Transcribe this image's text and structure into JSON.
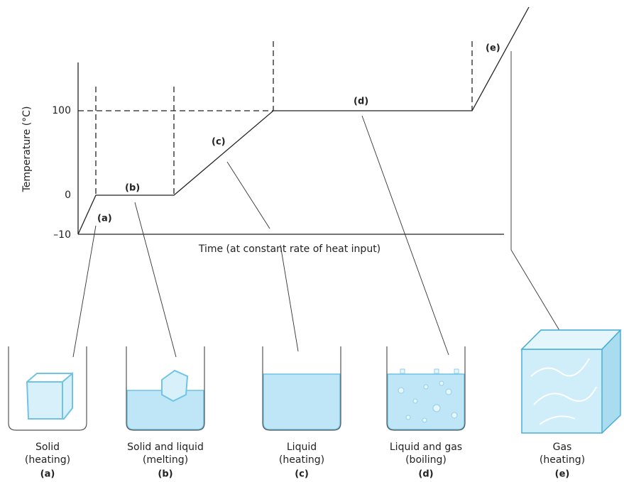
{
  "graph": {
    "y_axis_label": "Temperature (°C)",
    "y_ticks": [
      "100",
      "0",
      "–10"
    ],
    "x_axis_label": "Time (at constant rate of heat input)",
    "segment_labels": [
      "(a)",
      "(b)",
      "(c)",
      "(d)",
      "(e)"
    ]
  },
  "panels": [
    {
      "caption": [
        "Solid",
        "(heating)"
      ],
      "letter": "(a)"
    },
    {
      "caption": [
        "Solid and liquid",
        "(melting)"
      ],
      "letter": "(b)"
    },
    {
      "caption": [
        "Liquid",
        "(heating)"
      ],
      "letter": "(c)"
    },
    {
      "caption": [
        "Liquid and gas",
        "(boiling)"
      ],
      "letter": "(d)"
    },
    {
      "caption": [
        "Gas",
        "(heating)"
      ],
      "letter": "(e)"
    }
  ]
}
